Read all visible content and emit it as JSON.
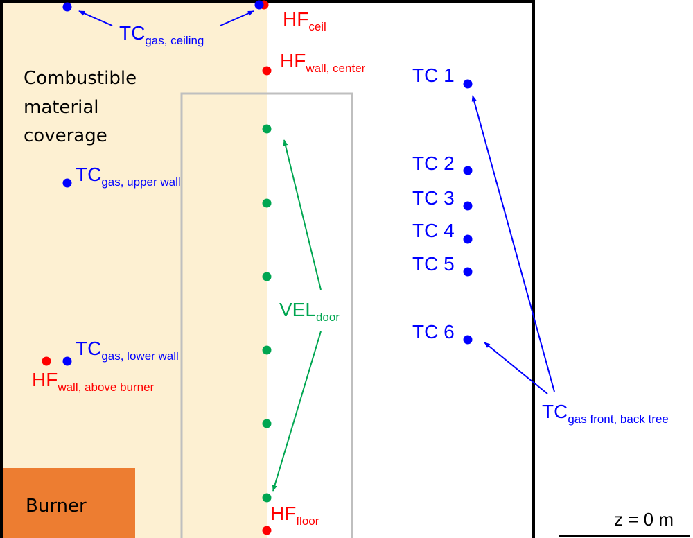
{
  "colors": {
    "combustible": "#FDF0D2",
    "burner": "#ED7D31",
    "thermocouple": "#0000FF",
    "heat_flux": "#FF0000",
    "velocity": "#00A651",
    "door": "#BFBFBF",
    "wall": "#000000"
  },
  "labels": {
    "combustible_line1": "Combustible",
    "combustible_line2": "material",
    "combustible_line3": "coverage",
    "burner": "Burner",
    "tc_ceiling_main": "TC",
    "tc_ceiling_sub": "gas, ceiling",
    "hf_ceil_main": "HF",
    "hf_ceil_sub": "ceil",
    "hf_wall_center_main": "HF",
    "hf_wall_center_sub": "wall, center",
    "tc_upper_wall_main": "TC",
    "tc_upper_wall_sub": "gas, upper wall",
    "tc_lower_wall_main": "TC",
    "tc_lower_wall_sub": "gas, lower wall",
    "hf_above_burner_main": "HF",
    "hf_above_burner_sub": "wall, above burner",
    "vel_door_main": "VEL",
    "vel_door_sub": "door",
    "hf_floor_main": "HF",
    "hf_floor_sub": "floor",
    "tc1": "TC 1",
    "tc2": "TC 2",
    "tc3": "TC 3",
    "tc4": "TC 4",
    "tc5": "TC 5",
    "tc6": "TC 6",
    "tc_tree_main": "TC",
    "tc_tree_sub": "gas front, back tree",
    "scale": "z = 0 m"
  }
}
